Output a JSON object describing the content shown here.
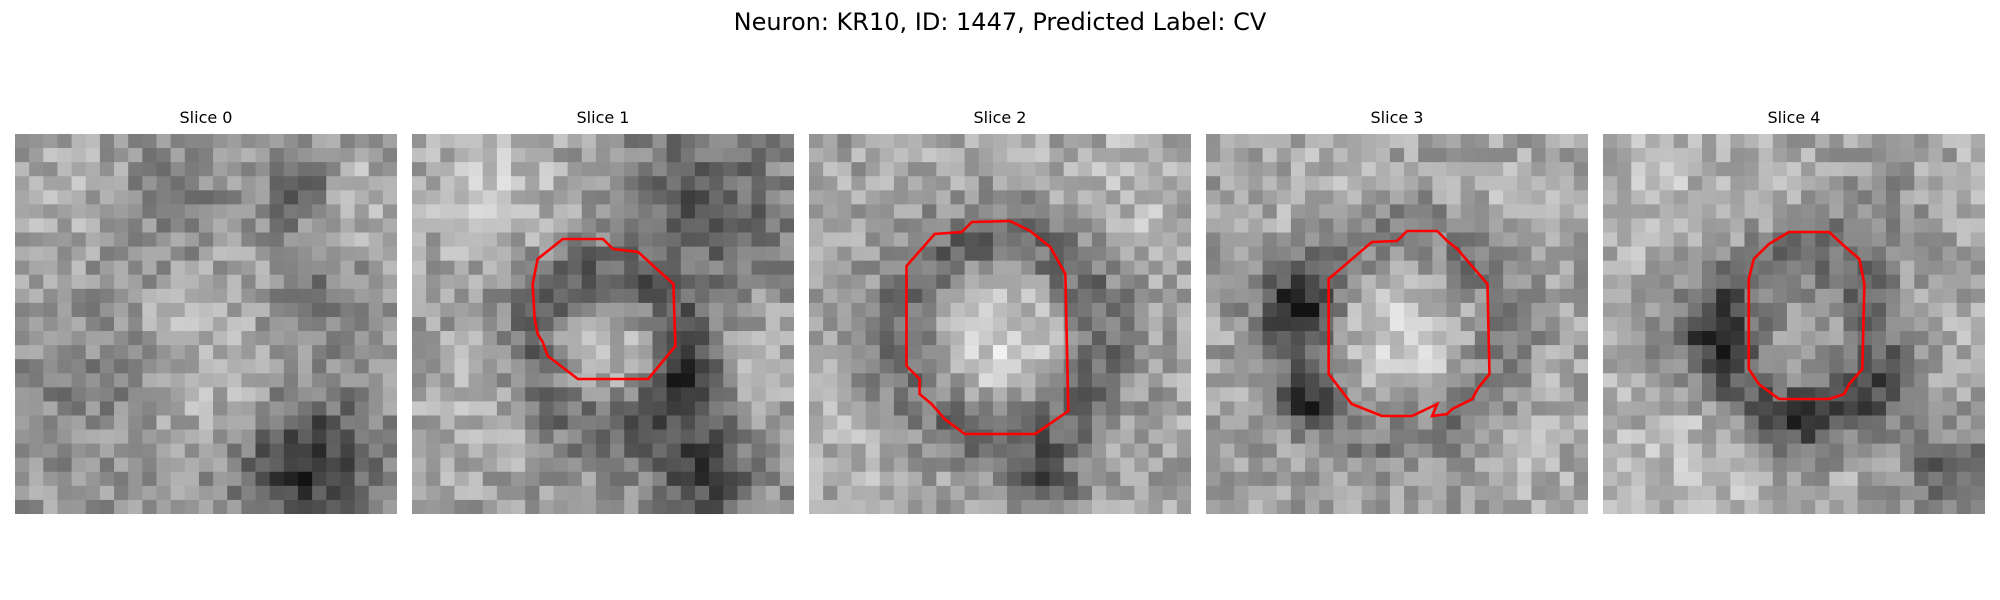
{
  "figure": {
    "suptitle": "Neuron: KR10, ID: 1447, Predicted Label: CV",
    "contour_color": "#ff0000",
    "colormap": "grayscale"
  },
  "slices": [
    {
      "title": "Slice 0",
      "has_contour": false
    },
    {
      "title": "Slice 1",
      "has_contour": true
    },
    {
      "title": "Slice 2",
      "has_contour": true
    },
    {
      "title": "Slice 3",
      "has_contour": true
    },
    {
      "title": "Slice 4",
      "has_contour": true
    }
  ]
}
